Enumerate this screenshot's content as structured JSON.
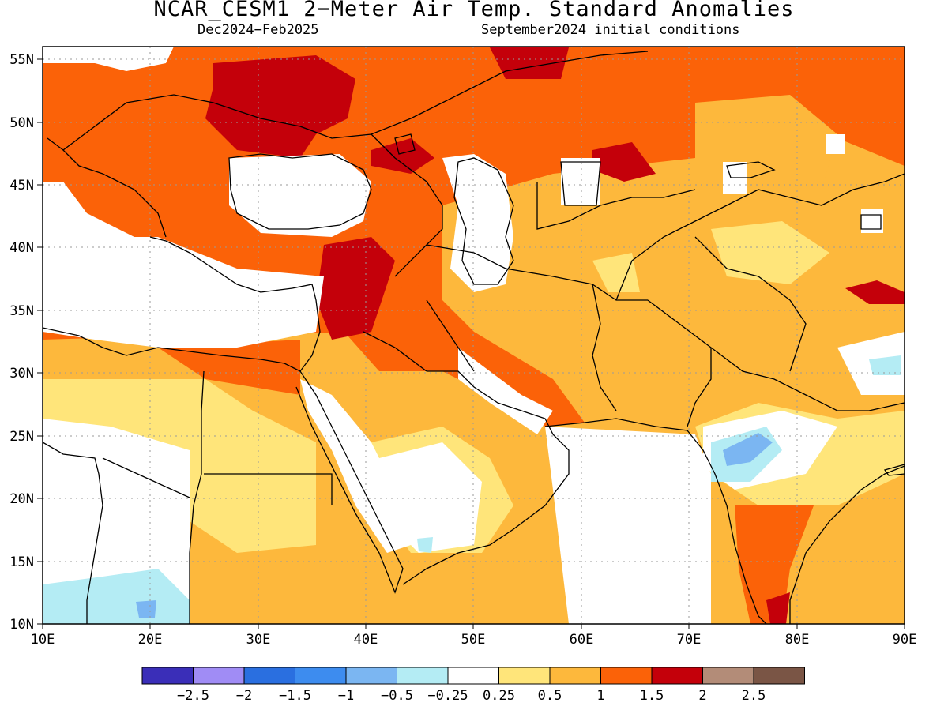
{
  "title": "NCAR_CESM1 2−Meter Air Temp. Standard Anomalies",
  "period": "Dec2024−Feb2025",
  "initial_conditions": "September2024 initial conditions",
  "map": {
    "lon_range": [
      10,
      90
    ],
    "lat_range": [
      10,
      56
    ],
    "x_ticks": [
      "10E",
      "20E",
      "30E",
      "40E",
      "50E",
      "60E",
      "70E",
      "80E",
      "90E"
    ],
    "y_ticks": [
      "55N",
      "50N",
      "45N",
      "40N",
      "35N",
      "30N",
      "25N",
      "20N",
      "15N",
      "10N"
    ],
    "gridlines": "dotted"
  },
  "colorbar": {
    "labels": [
      "−2.5",
      "−2",
      "−1.5",
      "−1",
      "−0.5",
      "−0.25",
      "0.25",
      "0.5",
      "1",
      "1.5",
      "2",
      "2.5"
    ],
    "colors": [
      "#3a2eb8",
      "#a08cf5",
      "#2a6fe0",
      "#3d8cef",
      "#7bb6f2",
      "#b4ecf4",
      "#ffffff",
      "#ffe57a",
      "#fdb83c",
      "#fb6208",
      "#c4000a",
      "#b38c78",
      "#7a5545"
    ]
  },
  "anomaly_regions": [
    {
      "category": "1 to 1.5",
      "color": "#fb6208",
      "location": "Europe, Turkey, Middle East, Central Asia"
    },
    {
      "category": "1.5 to 2",
      "color": "#c4000a",
      "location": "Ukraine / Belarus, Syria, Kazakhstan patches"
    },
    {
      "category": "0.5 to 1",
      "color": "#fdb83c",
      "location": "North Africa, Iran, Central Asia, India"
    },
    {
      "category": "0.25 to 0.5",
      "color": "#ffe57a",
      "location": "Sahara, Arabia, Tibet"
    },
    {
      "category": "-0.25 to -0.5",
      "color": "#b4ecf4",
      "location": "Central Africa, western India"
    },
    {
      "category": "-1 to -0.5",
      "color": "#7bb6f2",
      "location": "Western India"
    }
  ]
}
